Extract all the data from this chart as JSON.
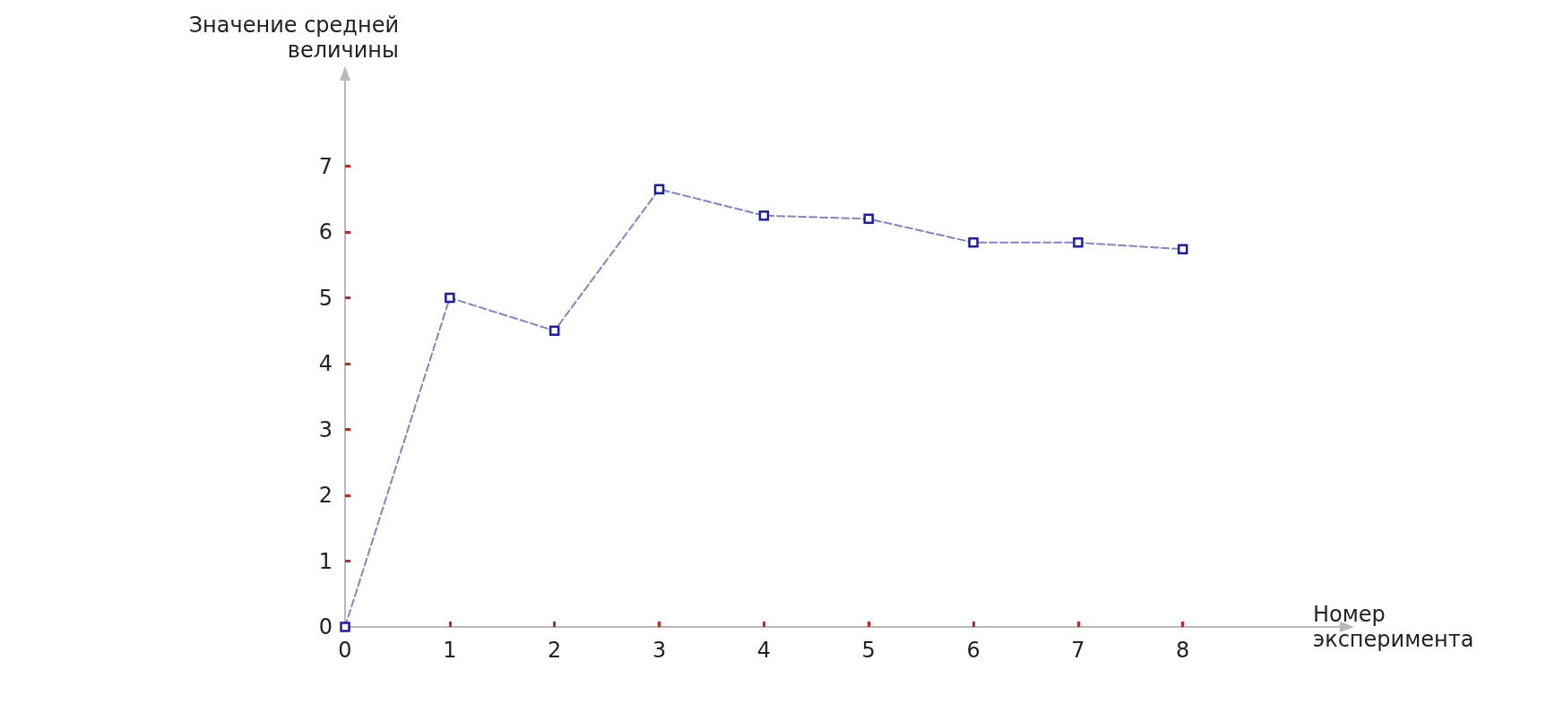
{
  "chart_data": {
    "type": "line",
    "xlabel": "Номер эксперимента",
    "ylabel": "Значение средней величины",
    "x": [
      0,
      1,
      2,
      3,
      4,
      5,
      6,
      7,
      8
    ],
    "series": [
      {
        "color": "#1c1cb0",
        "values": [
          0,
          5,
          4.5,
          6.65,
          6.25,
          6.2,
          5.84,
          5.84,
          5.74
        ]
      }
    ],
    "xlim": [
      0,
      9.5
    ],
    "xticks": [
      0,
      1,
      2,
      3,
      4,
      5,
      6,
      7,
      8
    ],
    "ylim": [
      0,
      8.3
    ],
    "yticks": [
      0,
      1,
      2,
      3,
      4,
      5,
      6,
      7
    ],
    "grid": false,
    "marker": "square",
    "line_style": "dashed"
  }
}
